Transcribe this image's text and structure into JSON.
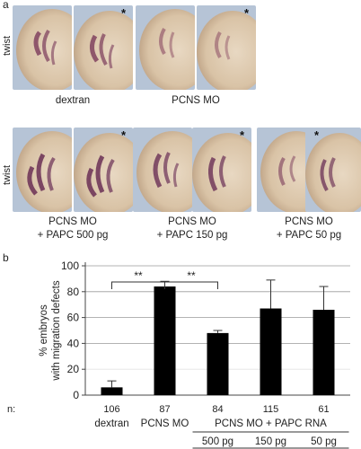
{
  "panel_a": {
    "letter": "a",
    "row_label": "twist",
    "star": "*",
    "conditions": [
      {
        "line1": "dextran",
        "line2": ""
      },
      {
        "line1": "PCNS MO",
        "line2": ""
      },
      {
        "line1": "PCNS MO",
        "line2": "+ PAPC 500 pg"
      },
      {
        "line1": "PCNS MO",
        "line2": "+ PAPC 150 pg"
      },
      {
        "line1": "PCNS MO",
        "line2": "+ PAPC 50 pg"
      }
    ]
  },
  "panel_b": {
    "letter": "b",
    "n_label": "n:",
    "group_label": "PCNS MO + PAPC RNA",
    "sig_marks": [
      "**",
      "**"
    ]
  },
  "chart_data": {
    "type": "bar",
    "ylabel": "% embryos with migration defects",
    "ylim": [
      0,
      100
    ],
    "yticks": [
      0,
      20,
      40,
      60,
      80,
      100
    ],
    "categories": [
      "dextran",
      "PCNS MO",
      "500 pg",
      "150 pg",
      "50 pg"
    ],
    "n": [
      "106",
      "87",
      "84",
      "115",
      "61"
    ],
    "values": [
      6,
      84,
      48,
      67,
      66
    ],
    "errors": [
      5,
      4,
      2,
      22,
      18
    ],
    "bar_color": "#000000",
    "grid": true
  }
}
